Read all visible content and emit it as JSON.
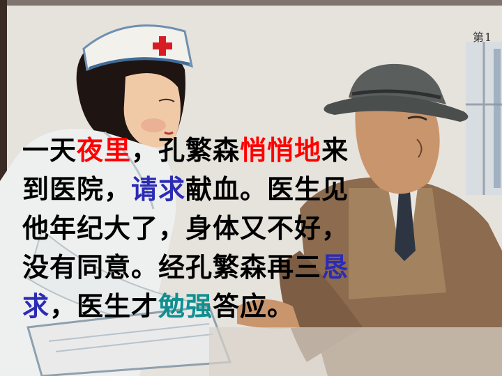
{
  "page_mark": "第1",
  "story": {
    "lines": [
      [
        {
          "text": "一天",
          "color": "black"
        },
        {
          "text": "夜里",
          "color": "red"
        },
        {
          "text": "，孔繁森",
          "color": "black"
        },
        {
          "text": "悄悄地",
          "color": "red"
        },
        {
          "text": "来",
          "color": "black"
        }
      ],
      [
        {
          "text": "到医院，",
          "color": "black"
        },
        {
          "text": "请求",
          "color": "blue"
        },
        {
          "text": "献血。医生见",
          "color": "black"
        }
      ],
      [
        {
          "text": "他年纪大了，身体又不好，",
          "color": "black"
        }
      ],
      [
        {
          "text": "没有同意。经孔繁森再三",
          "color": "black"
        },
        {
          "text": "恳",
          "color": "blue"
        }
      ],
      [
        {
          "text": "求",
          "color": "blue"
        },
        {
          "text": "，医生才",
          "color": "black"
        },
        {
          "text": "勉强",
          "color": "teal"
        },
        {
          "text": "答应。",
          "color": "black"
        }
      ]
    ]
  },
  "colors": {
    "black": "#000000",
    "red": "#ff0000",
    "blue": "#2b2bb5",
    "teal": "#0f8f8f"
  }
}
